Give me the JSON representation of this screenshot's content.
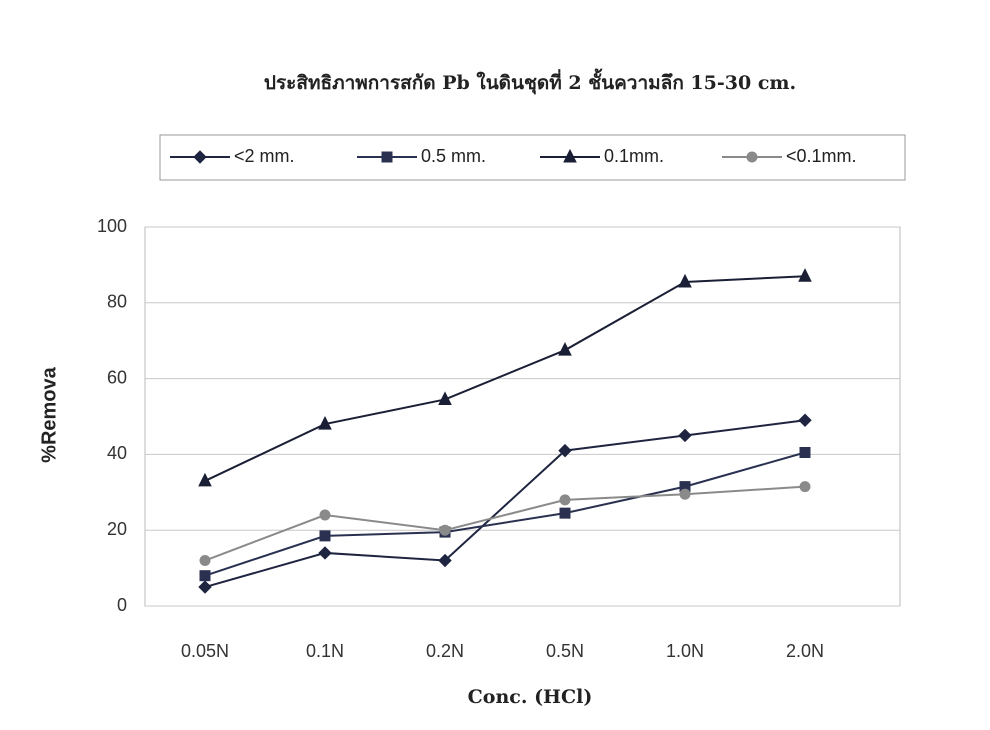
{
  "chart_data": {
    "type": "line",
    "title": "ประสิทธิภาพการสกัด Pb ในดินชุดที่ 2 ชั้นความลึก 15-30 cm.",
    "x_label": "Conc. (HCl)",
    "y_label": "%Remova",
    "categories": [
      "0.05N",
      "0.1N",
      "0.2N",
      "0.5N",
      "1.0N",
      "2.0N"
    ],
    "series": [
      {
        "name": "<2 mm.",
        "color": "#1f2540",
        "marker": "diamond",
        "values": [
          5,
          14,
          12,
          41,
          45,
          49
        ]
      },
      {
        "name": "0.5 mm.",
        "color": "#2a3150",
        "marker": "square",
        "values": [
          8,
          18.5,
          19.5,
          24.5,
          31.5,
          40.5
        ]
      },
      {
        "name": "0.1mm.",
        "color": "#1a1f35",
        "marker": "triangle",
        "values": [
          33,
          48,
          54.5,
          67.5,
          85.5,
          87
        ]
      },
      {
        "name": "<0.1mm.",
        "color": "#8a8a8a",
        "marker": "circle",
        "values": [
          12,
          24,
          20,
          28,
          29.5,
          31.5
        ]
      }
    ],
    "ylim": [
      0,
      100
    ],
    "yticks": [
      0,
      20,
      40,
      60,
      80,
      100
    ],
    "grid": true,
    "legend": "top"
  }
}
